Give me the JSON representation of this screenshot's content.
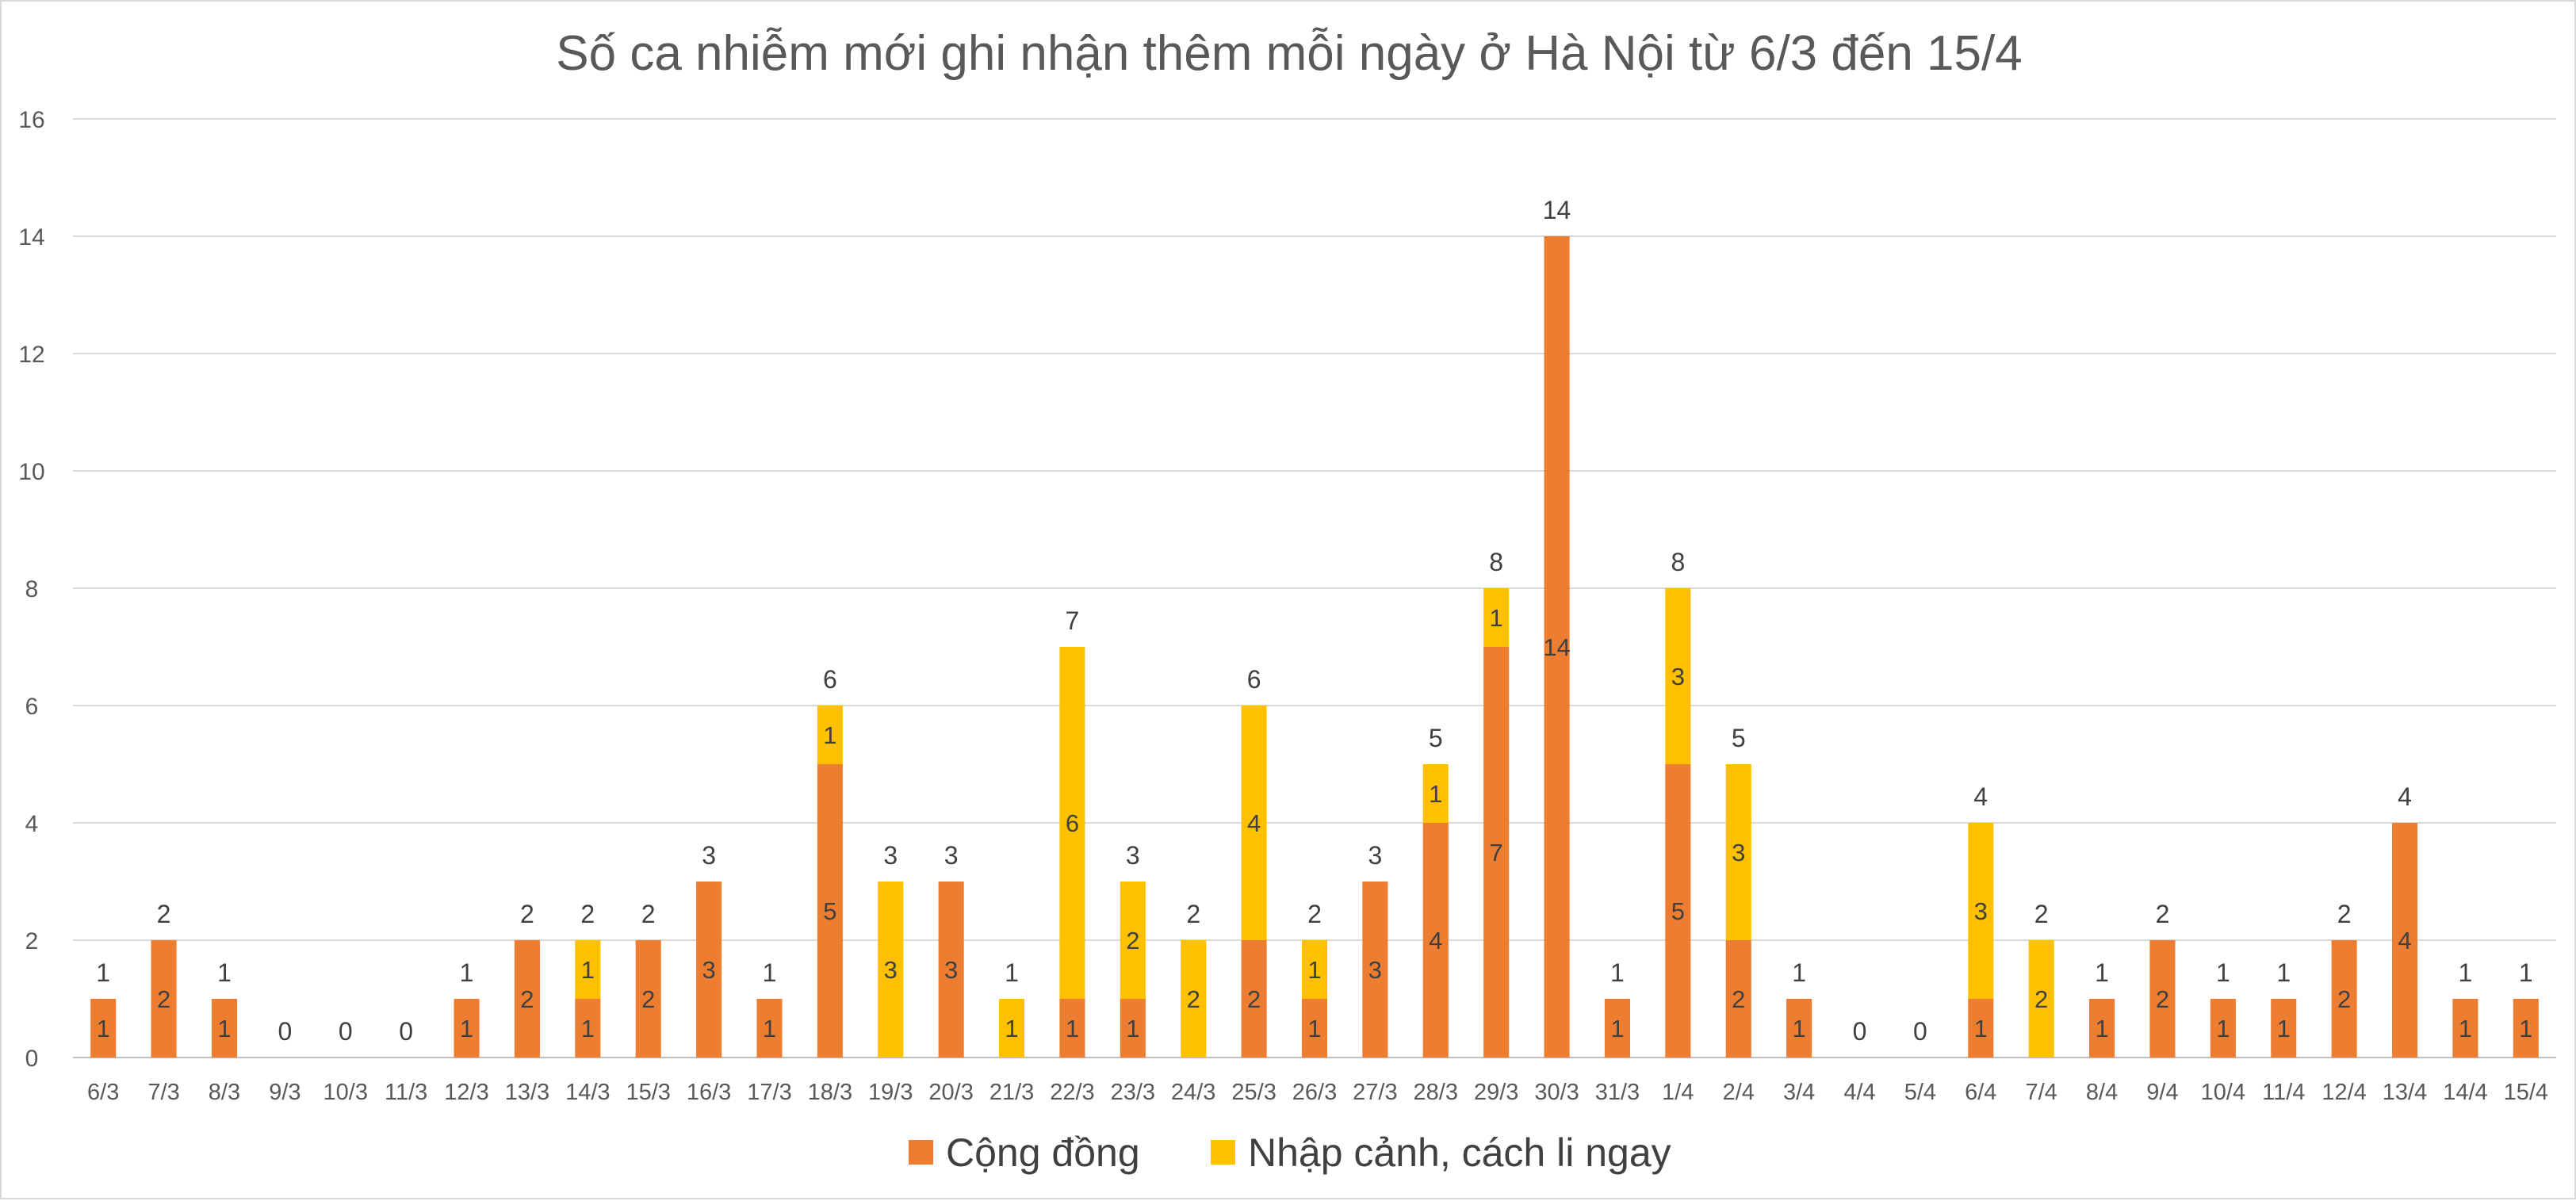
{
  "chart_data": {
    "type": "bar",
    "stacked": true,
    "title": "Số ca nhiễm mới ghi nhận thêm mỗi ngày ở Hà Nội từ 6/3 đến 15/4",
    "xlabel": "",
    "ylabel": "",
    "ylim": [
      0,
      16
    ],
    "yticks": [
      0,
      2,
      4,
      6,
      8,
      10,
      12,
      14,
      16
    ],
    "grid": true,
    "legend_position": "bottom",
    "categories": [
      "6/3",
      "7/3",
      "8/3",
      "9/3",
      "10/3",
      "11/3",
      "12/3",
      "13/3",
      "14/3",
      "15/3",
      "16/3",
      "17/3",
      "18/3",
      "19/3",
      "20/3",
      "21/3",
      "22/3",
      "23/3",
      "24/3",
      "25/3",
      "26/3",
      "27/3",
      "28/3",
      "29/3",
      "30/3",
      "31/3",
      "1/4",
      "2/4",
      "3/4",
      "4/4",
      "5/4",
      "6/4",
      "7/4",
      "8/4",
      "9/4",
      "10/4",
      "11/4",
      "12/4",
      "13/4",
      "14/4",
      "15/4"
    ],
    "series": [
      {
        "name": "Cộng đồng",
        "color": "#ed7d31",
        "values": [
          1,
          2,
          1,
          0,
          0,
          0,
          1,
          2,
          1,
          2,
          3,
          1,
          5,
          0,
          3,
          0,
          1,
          1,
          0,
          2,
          1,
          3,
          4,
          7,
          14,
          1,
          5,
          2,
          1,
          0,
          0,
          1,
          0,
          1,
          2,
          1,
          1,
          2,
          4,
          1,
          1
        ]
      },
      {
        "name": "Nhập cảnh, cách li ngay",
        "color": "#ffc000",
        "values": [
          0,
          0,
          0,
          0,
          0,
          0,
          0,
          0,
          1,
          0,
          0,
          0,
          1,
          3,
          0,
          1,
          6,
          2,
          2,
          4,
          1,
          0,
          1,
          1,
          0,
          0,
          3,
          3,
          0,
          0,
          0,
          3,
          2,
          0,
          0,
          0,
          0,
          0,
          0,
          0,
          0
        ]
      }
    ],
    "totals": [
      1,
      2,
      1,
      0,
      0,
      0,
      1,
      2,
      2,
      2,
      3,
      1,
      6,
      3,
      3,
      1,
      7,
      3,
      2,
      6,
      2,
      3,
      5,
      8,
      14,
      1,
      8,
      5,
      1,
      0,
      0,
      4,
      2,
      1,
      2,
      1,
      1,
      2,
      4,
      1,
      1
    ]
  }
}
